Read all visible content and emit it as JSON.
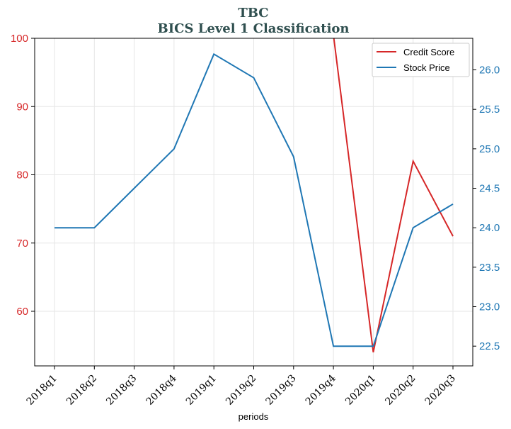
{
  "chart_data": {
    "type": "line",
    "title": "TBC",
    "subtitle": "BICS Level 1 Classification",
    "xlabel": "periods",
    "categories": [
      "2018q1",
      "2018q2",
      "2018q3",
      "2018q4",
      "2019q1",
      "2019q2",
      "2019q3",
      "2019q4",
      "2020q1",
      "2020q2",
      "2020q3"
    ],
    "series": [
      {
        "name": "Credit Score",
        "axis": "left",
        "color": "#d62728",
        "values": [
          null,
          null,
          null,
          null,
          null,
          null,
          null,
          100.5,
          54,
          82,
          71
        ]
      },
      {
        "name": "Stock Price",
        "axis": "right",
        "color": "#1f77b4",
        "values": [
          24.0,
          24.0,
          24.5,
          25.0,
          26.2,
          25.9,
          24.9,
          22.5,
          22.5,
          24.0,
          24.3
        ]
      }
    ],
    "y_left": {
      "ylim": [
        52,
        100
      ],
      "ticks": [
        60,
        70,
        80,
        90,
        100
      ],
      "tick_labels": [
        "60",
        "70",
        "80",
        "90",
        "100"
      ],
      "color": "#d62728"
    },
    "y_right": {
      "ylim": [
        22.25,
        26.4
      ],
      "ticks": [
        22.5,
        23.0,
        23.5,
        24.0,
        24.5,
        25.0,
        25.5,
        26.0
      ],
      "tick_labels": [
        "22.5",
        "23.0",
        "23.5",
        "24.0",
        "24.5",
        "25.0",
        "25.5",
        "26.0"
      ],
      "color": "#1f77b4"
    },
    "grid": true,
    "legend_position": "top-right"
  }
}
